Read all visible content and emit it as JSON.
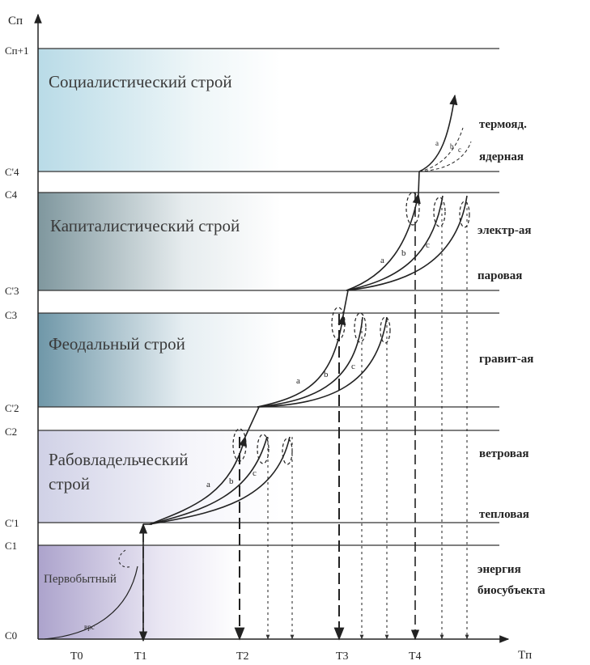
{
  "axes": {
    "y_label": "Cп",
    "x_label": "Tп",
    "y_ticks": [
      "Cп+1",
      "C'4",
      "C4",
      "C'3",
      "C3",
      "C'2",
      "C2",
      "C'1",
      "C1",
      "C0"
    ],
    "x_ticks": [
      "T0",
      "T1",
      "T2",
      "T3",
      "T4"
    ]
  },
  "bands": [
    {
      "label": "Социалистический строй",
      "color": "#cfe6ee"
    },
    {
      "label": "Капиталистический строй",
      "color": "#8fa6ad"
    },
    {
      "label": "Феодальный строй",
      "color": "#7ea3b3"
    },
    {
      "label": "Рабовладельческий строй",
      "color": "#d7d8ea"
    },
    {
      "label": "Первобытный",
      "color": "#b8b0d2"
    }
  ],
  "right_labels": [
    "термояд.",
    "ядерная",
    "электр-ая",
    "паровая",
    "гравит-ая",
    "ветровая",
    "тепловая",
    "энергия биосубъекта"
  ],
  "curve_labels": [
    "a",
    "b",
    "c"
  ],
  "start_curve_label": "вpc"
}
